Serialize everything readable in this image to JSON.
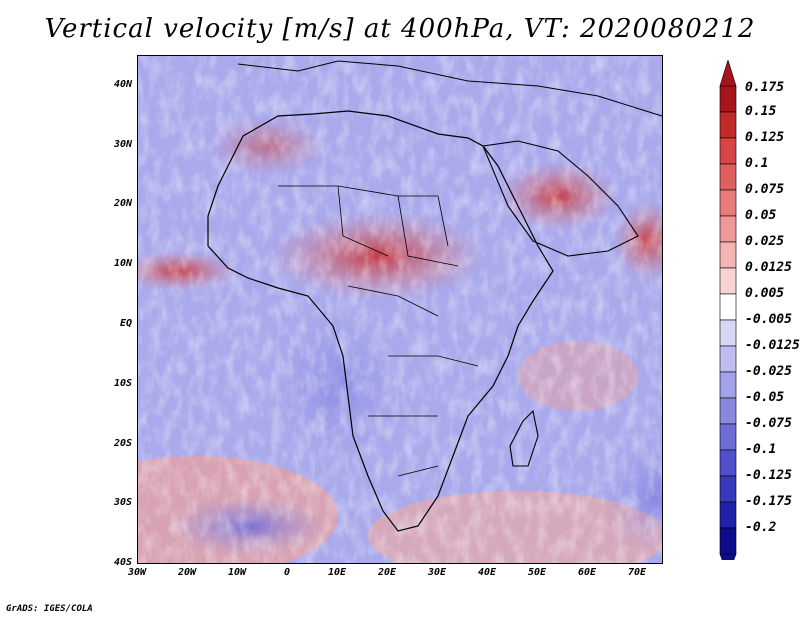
{
  "title": "Vertical velocity [m/s] at 400hPa, VT: 2020080212",
  "credit": "GrADS: IGES/COLA",
  "map": {
    "lon_range": [
      -30,
      75
    ],
    "lat_range": [
      -40,
      45
    ],
    "lat_labels": [
      "40N",
      "30N",
      "20N",
      "10N",
      "EQ",
      "10S",
      "20S",
      "30S",
      "40S"
    ],
    "lon_labels": [
      "30W",
      "20W",
      "10W",
      "0",
      "10E",
      "20E",
      "30E",
      "40E",
      "50E",
      "60E",
      "70E"
    ]
  },
  "colorbar": {
    "labels": [
      "0.175",
      "0.15",
      "0.125",
      "0.1",
      "0.075",
      "0.05",
      "0.025",
      "0.0125",
      "0.005",
      "-0.005",
      "-0.0125",
      "-0.025",
      "-0.05",
      "-0.075",
      "-0.1",
      "-0.125",
      "-0.175",
      "-0.2"
    ],
    "colors": [
      "#a8141c",
      "#c22a2a",
      "#d64646",
      "#e06060",
      "#e87a7a",
      "#ef9898",
      "#f4b4b4",
      "#f9d2d2",
      "#ffffff",
      "#d8d8f6",
      "#bdbdf0",
      "#a2a2e8",
      "#8888e0",
      "#6c6cd6",
      "#5050cc",
      "#3838bc",
      "#2020a8",
      "#0c0c8c"
    ]
  }
}
